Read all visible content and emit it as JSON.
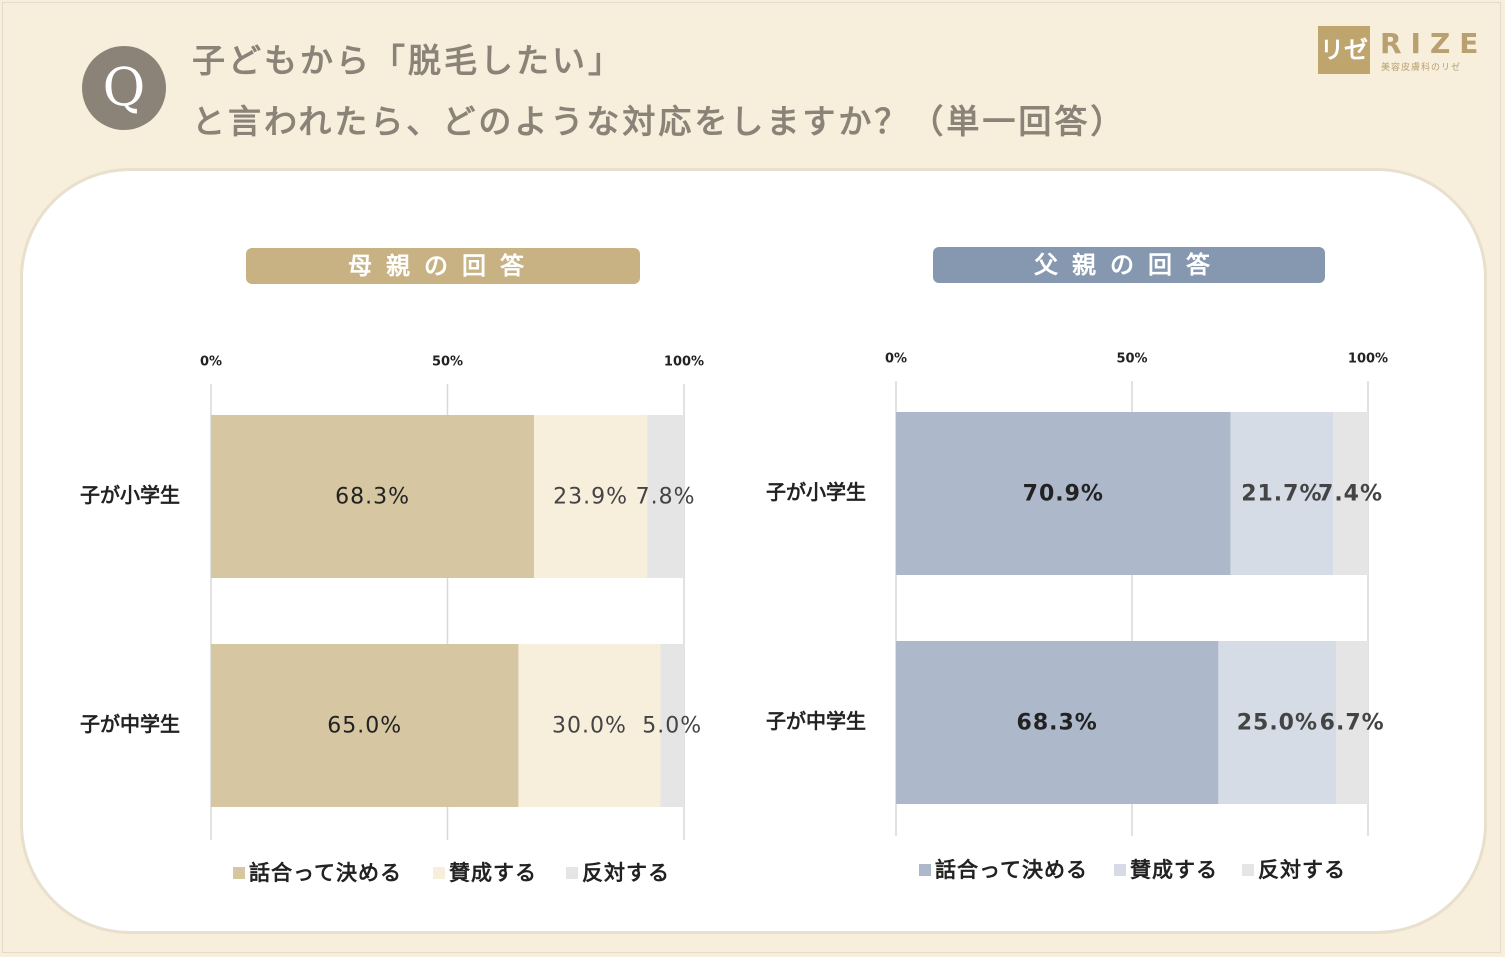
{
  "header": {
    "q_mark": "Q",
    "question_line1": "子どもから「脱毛したい」",
    "question_line2": "と言われたら、どのような対応をしますか？（単一回答）"
  },
  "logo": {
    "mark": "リゼ",
    "name": "RIZE",
    "tagline": "美容皮膚科のリゼ"
  },
  "colors": {
    "page_background": "#f7eedc",
    "mother_banner": "#c8b283",
    "father_banner": "#8598b0",
    "mother_series": [
      "#d6c6a1",
      "#f7eedc",
      "#e5e5e5"
    ],
    "father_series": [
      "#adb8ca",
      "#d6dce6",
      "#e5e5e5"
    ]
  },
  "chart_data": [
    {
      "type": "bar",
      "orientation": "horizontal",
      "stacked": true,
      "title": "母親の回答",
      "categories": [
        "子が小学生",
        "子が中学生"
      ],
      "series": [
        {
          "name": "話合って決める",
          "values": [
            68.3,
            65.0
          ],
          "labels": [
            "68.3%",
            "65.0%"
          ]
        },
        {
          "name": "賛成する",
          "values": [
            23.9,
            30.0
          ],
          "labels": [
            "23.9%",
            "30.0%"
          ]
        },
        {
          "name": "反対する",
          "values": [
            7.8,
            5.0
          ],
          "labels": [
            "7.8%",
            "5.0%"
          ]
        }
      ],
      "xlim": [
        0,
        100
      ],
      "ticks": [
        "0%",
        "50%",
        "100%"
      ],
      "xaxis_position": "top",
      "legend": "bottom",
      "grid": true
    },
    {
      "type": "bar",
      "orientation": "horizontal",
      "stacked": true,
      "title": "父親の回答",
      "categories": [
        "子が小学生",
        "子が中学生"
      ],
      "series": [
        {
          "name": "話合って決める",
          "values": [
            70.9,
            68.3
          ],
          "labels": [
            "70.9%",
            "68.3%"
          ]
        },
        {
          "name": "賛成する",
          "values": [
            21.7,
            25.0
          ],
          "labels": [
            "21.7%",
            "25.0%"
          ]
        },
        {
          "name": "反対する",
          "values": [
            7.4,
            6.7
          ],
          "labels": [
            "7.4%",
            "6.7%"
          ]
        }
      ],
      "xlim": [
        0,
        100
      ],
      "ticks": [
        "0%",
        "50%",
        "100%"
      ],
      "xaxis_position": "top",
      "legend": "bottom",
      "grid": true
    }
  ]
}
